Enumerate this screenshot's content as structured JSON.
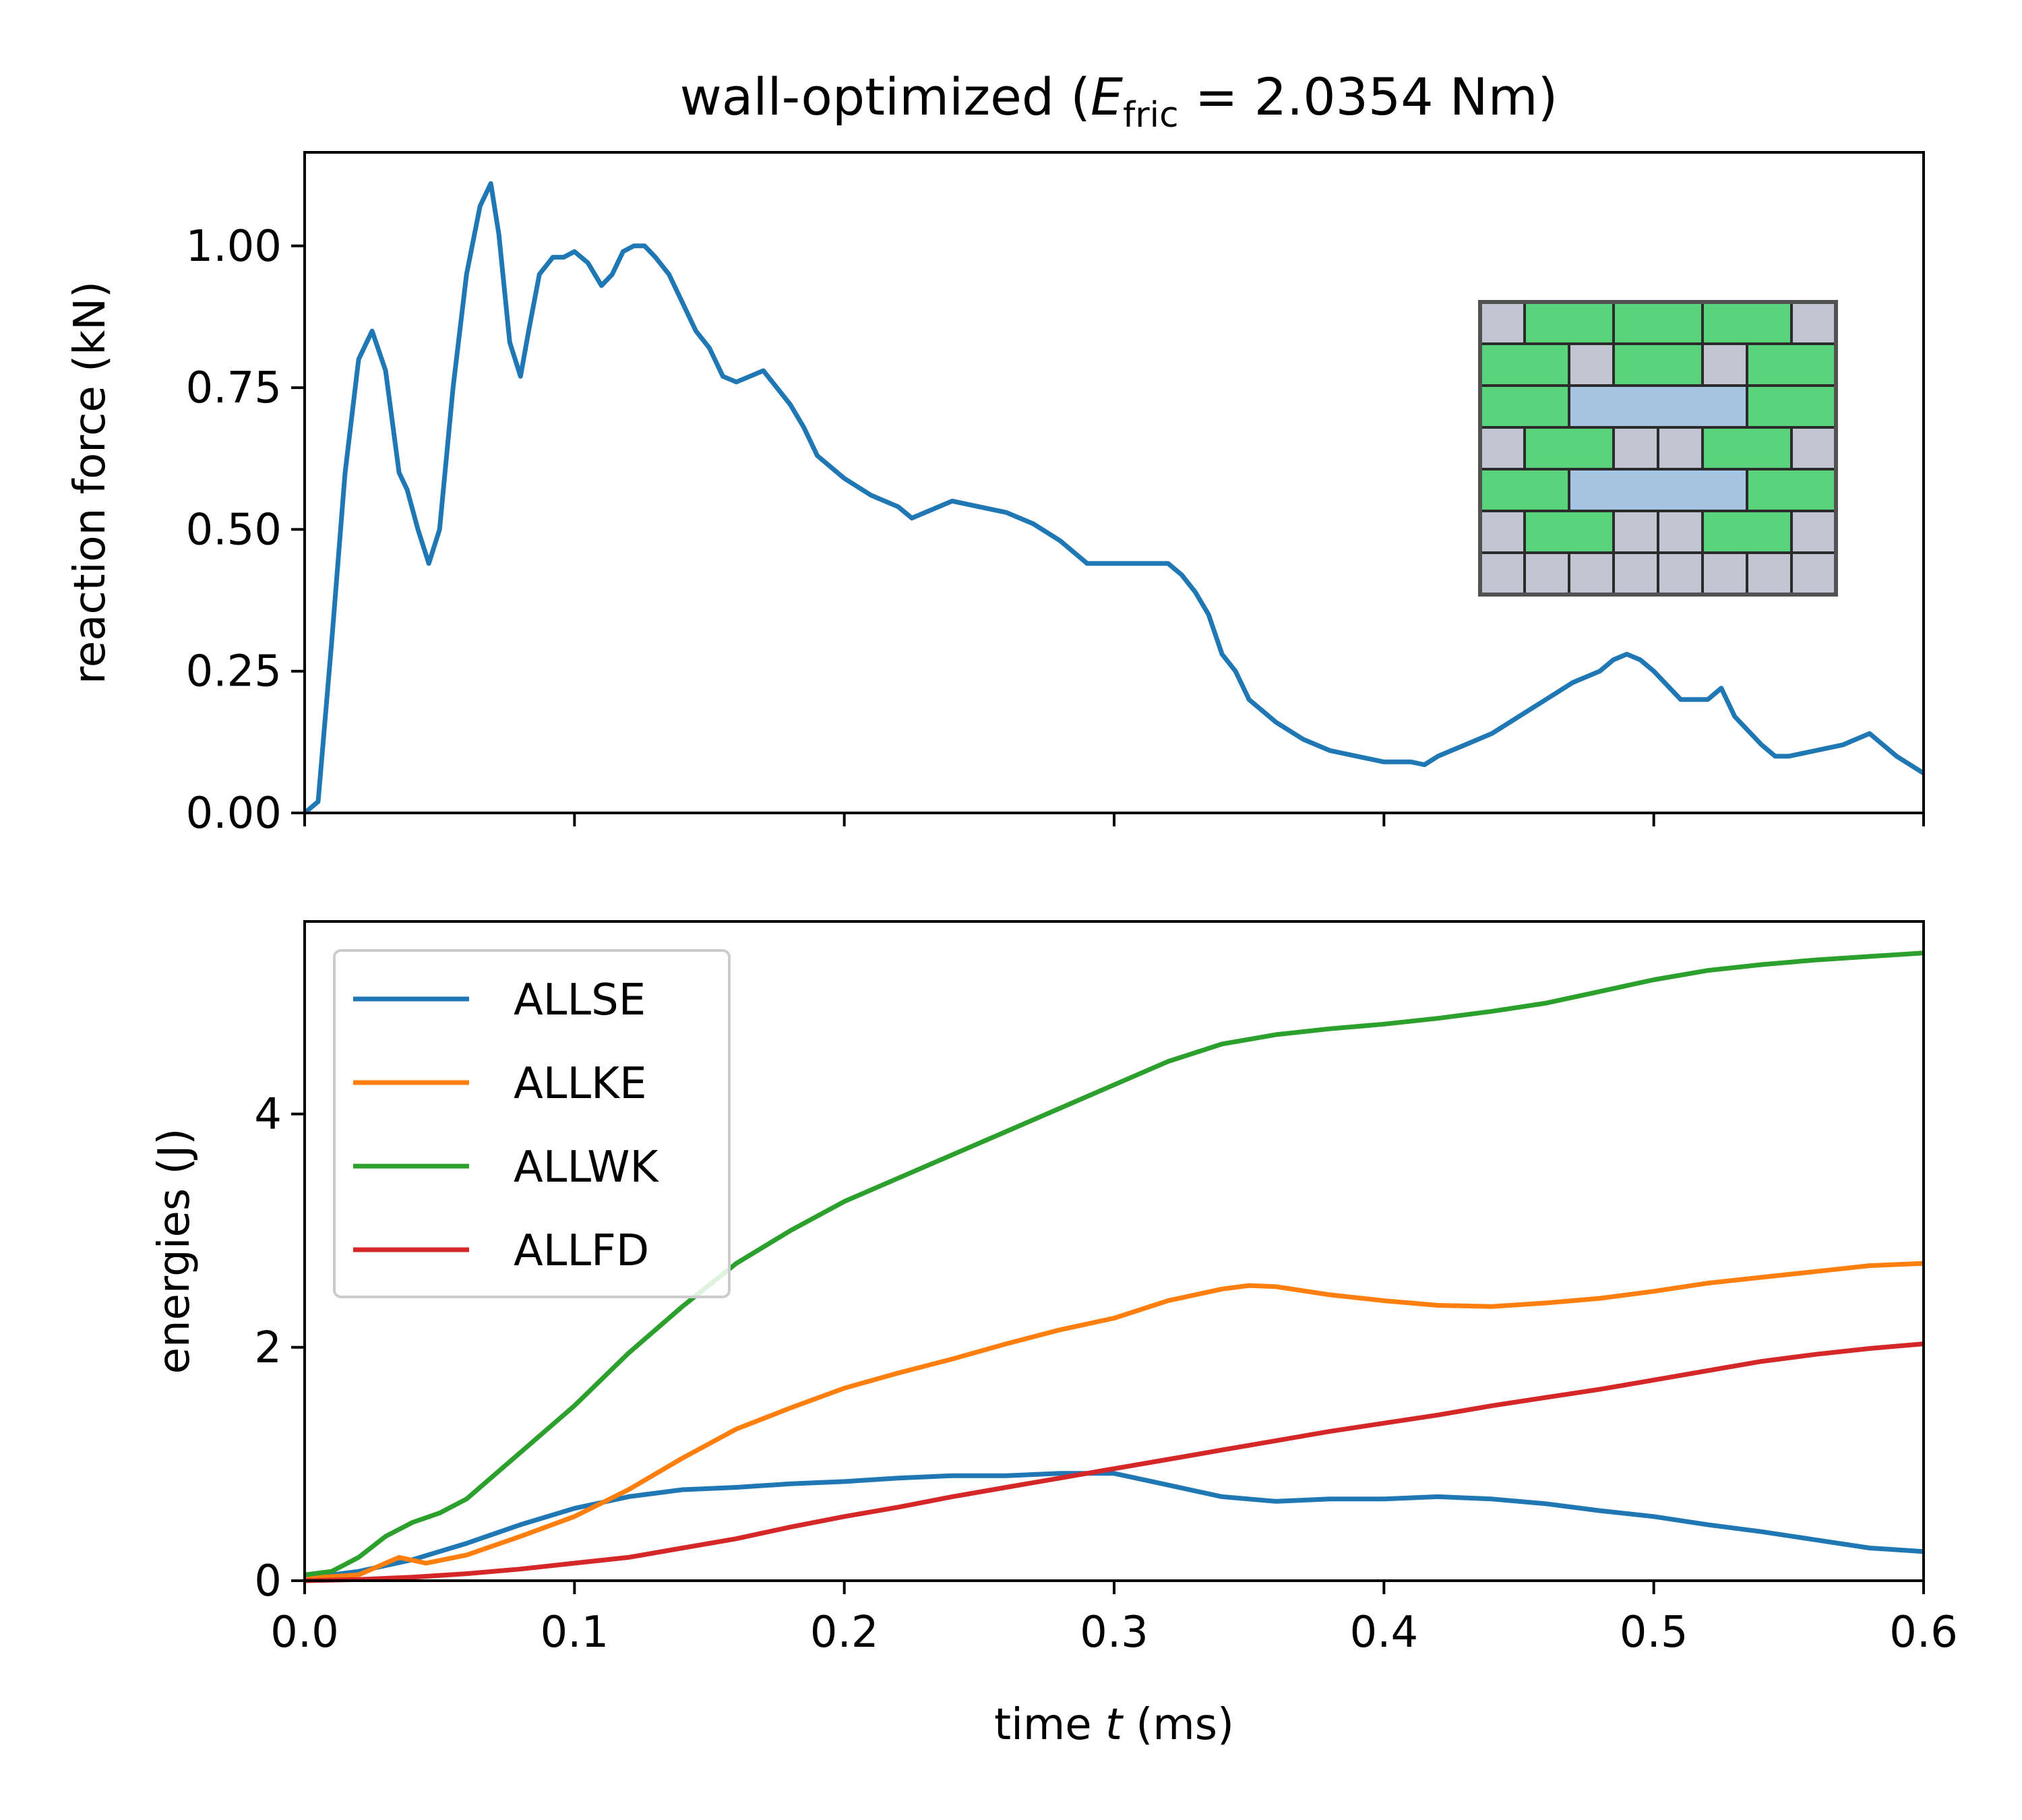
{
  "figure": {
    "title_prefix": "wall-optimized (",
    "title_var": "E",
    "title_sub": "fric",
    "title_suffix": " = 2.0354 Nm)"
  },
  "chart_data": [
    {
      "type": "line",
      "panel": "top",
      "title": "wall-optimized (E_fric = 2.0354 Nm)",
      "xlabel": "",
      "ylabel": "reaction force (kN)",
      "xlim": [
        0,
        0.6
      ],
      "ylim": [
        0,
        1.165
      ],
      "xticks": [
        0.0,
        0.1,
        0.2,
        0.3,
        0.4,
        0.5,
        0.6
      ],
      "yticks": [
        0.0,
        0.25,
        0.5,
        0.75,
        1.0
      ],
      "ytick_labels": [
        "0.00",
        "0.25",
        "0.50",
        "0.75",
        "1.00"
      ],
      "grid": false,
      "series": [
        {
          "color": "#1f77b4",
          "x": [
            0.0,
            0.005,
            0.01,
            0.015,
            0.02,
            0.025,
            0.03,
            0.035,
            0.038,
            0.042,
            0.046,
            0.05,
            0.055,
            0.06,
            0.065,
            0.069,
            0.072,
            0.076,
            0.08,
            0.083,
            0.087,
            0.092,
            0.096,
            0.1,
            0.105,
            0.11,
            0.114,
            0.118,
            0.122,
            0.126,
            0.13,
            0.135,
            0.14,
            0.145,
            0.15,
            0.155,
            0.16,
            0.165,
            0.17,
            0.175,
            0.18,
            0.185,
            0.19,
            0.195,
            0.2,
            0.21,
            0.22,
            0.225,
            0.23,
            0.24,
            0.25,
            0.26,
            0.27,
            0.28,
            0.29,
            0.3,
            0.31,
            0.32,
            0.325,
            0.33,
            0.335,
            0.34,
            0.345,
            0.35,
            0.36,
            0.37,
            0.38,
            0.39,
            0.4,
            0.41,
            0.415,
            0.42,
            0.43,
            0.44,
            0.45,
            0.46,
            0.47,
            0.48,
            0.485,
            0.49,
            0.495,
            0.5,
            0.51,
            0.52,
            0.525,
            0.53,
            0.54,
            0.545,
            0.55,
            0.56,
            0.57,
            0.575,
            0.58,
            0.59,
            0.6
          ],
          "y": [
            0.0,
            0.02,
            0.3,
            0.6,
            0.8,
            0.85,
            0.78,
            0.6,
            0.57,
            0.5,
            0.44,
            0.5,
            0.75,
            0.95,
            1.07,
            1.11,
            1.02,
            0.83,
            0.77,
            0.85,
            0.95,
            0.98,
            0.98,
            0.99,
            0.97,
            0.93,
            0.95,
            0.99,
            1.0,
            1.0,
            0.98,
            0.95,
            0.9,
            0.85,
            0.82,
            0.77,
            0.76,
            0.77,
            0.78,
            0.75,
            0.72,
            0.68,
            0.63,
            0.61,
            0.59,
            0.56,
            0.54,
            0.52,
            0.53,
            0.55,
            0.54,
            0.53,
            0.51,
            0.48,
            0.44,
            0.44,
            0.44,
            0.44,
            0.42,
            0.39,
            0.35,
            0.28,
            0.25,
            0.2,
            0.16,
            0.13,
            0.11,
            0.1,
            0.09,
            0.09,
            0.085,
            0.1,
            0.12,
            0.14,
            0.17,
            0.2,
            0.23,
            0.25,
            0.27,
            0.28,
            0.27,
            0.25,
            0.2,
            0.2,
            0.22,
            0.17,
            0.12,
            0.1,
            0.1,
            0.11,
            0.12,
            0.13,
            0.14,
            0.1,
            0.07
          ]
        }
      ],
      "inset": {
        "description": "wall layout grid",
        "colors": {
          "green": "#4cd172",
          "gray": "#bec2cf",
          "blue": "#9ebfdf",
          "line": "#1a1a1a"
        }
      }
    },
    {
      "type": "line",
      "panel": "bottom",
      "xlabel_prefix": "time ",
      "xlabel_var": "t",
      "xlabel_suffix": " (ms)",
      "ylabel": "energies (J)",
      "xlim": [
        0,
        0.6
      ],
      "ylim": [
        0,
        5.65
      ],
      "xticks": [
        0.0,
        0.1,
        0.2,
        0.3,
        0.4,
        0.5,
        0.6
      ],
      "xtick_labels": [
        "0.0",
        "0.1",
        "0.2",
        "0.3",
        "0.4",
        "0.5",
        "0.6"
      ],
      "yticks": [
        0,
        2,
        4
      ],
      "ytick_labels": [
        "0",
        "2",
        "4"
      ],
      "grid": false,
      "legend_position": "top-left",
      "series": [
        {
          "name": "ALLSE",
          "color": "#1f77b4",
          "x": [
            0.0,
            0.02,
            0.04,
            0.06,
            0.08,
            0.1,
            0.12,
            0.14,
            0.16,
            0.18,
            0.2,
            0.22,
            0.24,
            0.26,
            0.28,
            0.3,
            0.32,
            0.34,
            0.36,
            0.38,
            0.4,
            0.42,
            0.44,
            0.46,
            0.48,
            0.5,
            0.52,
            0.54,
            0.56,
            0.58,
            0.6
          ],
          "y": [
            0.02,
            0.08,
            0.18,
            0.32,
            0.48,
            0.62,
            0.72,
            0.78,
            0.8,
            0.83,
            0.85,
            0.88,
            0.9,
            0.9,
            0.92,
            0.92,
            0.82,
            0.72,
            0.68,
            0.7,
            0.7,
            0.72,
            0.7,
            0.66,
            0.6,
            0.55,
            0.48,
            0.42,
            0.35,
            0.28,
            0.25
          ]
        },
        {
          "name": "ALLKE",
          "color": "#ff7f0e",
          "x": [
            0.0,
            0.02,
            0.035,
            0.045,
            0.06,
            0.08,
            0.1,
            0.12,
            0.14,
            0.16,
            0.18,
            0.2,
            0.22,
            0.24,
            0.26,
            0.28,
            0.3,
            0.32,
            0.34,
            0.35,
            0.36,
            0.38,
            0.4,
            0.42,
            0.44,
            0.46,
            0.48,
            0.5,
            0.52,
            0.54,
            0.56,
            0.58,
            0.6
          ],
          "y": [
            0.02,
            0.05,
            0.2,
            0.15,
            0.22,
            0.38,
            0.55,
            0.78,
            1.05,
            1.3,
            1.48,
            1.65,
            1.78,
            1.9,
            2.03,
            2.15,
            2.25,
            2.4,
            2.5,
            2.53,
            2.52,
            2.45,
            2.4,
            2.36,
            2.35,
            2.38,
            2.42,
            2.48,
            2.55,
            2.6,
            2.65,
            2.7,
            2.72
          ]
        },
        {
          "name": "ALLWK",
          "color": "#2ca02c",
          "x": [
            0.0,
            0.01,
            0.02,
            0.03,
            0.04,
            0.05,
            0.06,
            0.08,
            0.1,
            0.12,
            0.14,
            0.16,
            0.18,
            0.2,
            0.22,
            0.24,
            0.26,
            0.28,
            0.3,
            0.32,
            0.34,
            0.36,
            0.38,
            0.4,
            0.42,
            0.44,
            0.46,
            0.48,
            0.5,
            0.52,
            0.54,
            0.56,
            0.58,
            0.6
          ],
          "y": [
            0.05,
            0.08,
            0.2,
            0.38,
            0.5,
            0.58,
            0.7,
            1.1,
            1.5,
            1.95,
            2.35,
            2.72,
            3.0,
            3.25,
            3.45,
            3.65,
            3.85,
            4.05,
            4.25,
            4.45,
            4.6,
            4.68,
            4.73,
            4.77,
            4.82,
            4.88,
            4.95,
            5.05,
            5.15,
            5.23,
            5.28,
            5.32,
            5.35,
            5.38
          ]
        },
        {
          "name": "ALLFD",
          "color": "#d62728",
          "x": [
            0.0,
            0.02,
            0.04,
            0.06,
            0.08,
            0.1,
            0.12,
            0.14,
            0.16,
            0.18,
            0.2,
            0.22,
            0.24,
            0.26,
            0.28,
            0.3,
            0.32,
            0.34,
            0.36,
            0.38,
            0.4,
            0.42,
            0.44,
            0.46,
            0.48,
            0.5,
            0.52,
            0.54,
            0.56,
            0.58,
            0.6
          ],
          "y": [
            0.0,
            0.01,
            0.03,
            0.06,
            0.1,
            0.15,
            0.2,
            0.28,
            0.36,
            0.46,
            0.55,
            0.63,
            0.72,
            0.8,
            0.88,
            0.96,
            1.04,
            1.12,
            1.2,
            1.28,
            1.35,
            1.42,
            1.5,
            1.57,
            1.64,
            1.72,
            1.8,
            1.88,
            1.94,
            1.99,
            2.03
          ]
        }
      ]
    }
  ]
}
